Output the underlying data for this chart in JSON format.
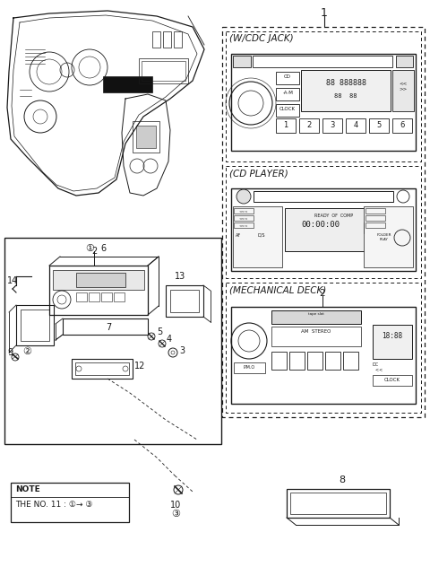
{
  "bg_color": "#ffffff",
  "lc": "#1a1a1a",
  "section1_label": "(W/CDC JACK)",
  "section2_label": "(CD PLAYER)",
  "section3_label": "(MECHANICAL DECK)",
  "part1": "1",
  "part2": "2",
  "btn_labels": [
    "1",
    "2",
    "3",
    "4",
    "5",
    "6"
  ],
  "note_line1": "NOTE",
  "note_line2": "THE NO. 11 : ①→ ③",
  "fig_w": 4.8,
  "fig_h": 6.32,
  "dpi": 100
}
